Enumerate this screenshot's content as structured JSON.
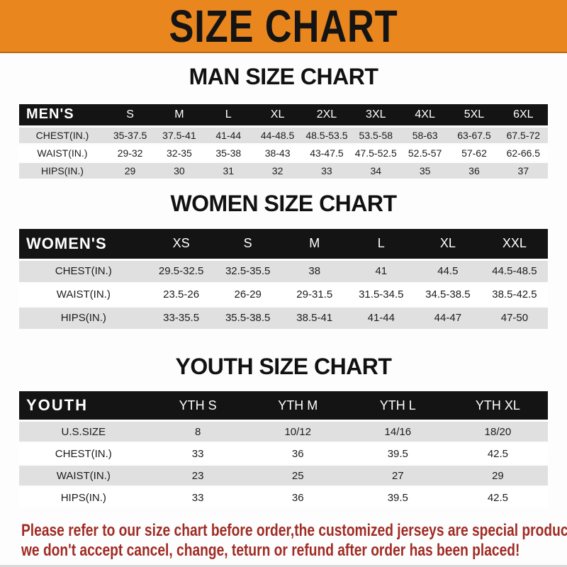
{
  "banner": {
    "title": "SIZE CHART"
  },
  "sections": [
    {
      "id": "men",
      "heading": "MAN SIZE CHART",
      "table": {
        "corner_label": "MEN'S",
        "columns": [
          "S",
          "M",
          "L",
          "XL",
          "2XL",
          "3XL",
          "4XL",
          "5XL",
          "6XL"
        ],
        "rows": [
          {
            "label": "CHEST(IN.)",
            "values": [
              "35-37.5",
              "37.5-41",
              "41-44",
              "44-48.5",
              "48.5-53.5",
              "53.5-58",
              "58-63",
              "63-67.5",
              "67.5-72"
            ]
          },
          {
            "label": "WAIST(IN.)",
            "values": [
              "29-32",
              "32-35",
              "35-38",
              "38-43",
              "43-47.5",
              "47.5-52.5",
              "52.5-57",
              "57-62",
              "62-66.5"
            ]
          },
          {
            "label": "HIPS(IN.)",
            "values": [
              "29",
              "30",
              "31",
              "32",
              "33",
              "34",
              "35",
              "36",
              "37"
            ]
          }
        ]
      }
    },
    {
      "id": "women",
      "heading": "WOMEN SIZE CHART",
      "table": {
        "corner_label": "WOMEN'S",
        "columns": [
          "XS",
          "S",
          "M",
          "L",
          "XL",
          "XXL"
        ],
        "rows": [
          {
            "label": "CHEST(IN.)",
            "values": [
              "29.5-32.5",
              "32.5-35.5",
              "38",
              "41",
              "44.5",
              "44.5-48.5"
            ]
          },
          {
            "label": "WAIST(IN.)",
            "values": [
              "23.5-26",
              "26-29",
              "29-31.5",
              "31.5-34.5",
              "34.5-38.5",
              "38.5-42.5"
            ]
          },
          {
            "label": "HIPS(IN.)",
            "values": [
              "33-35.5",
              "35.5-38.5",
              "38.5-41",
              "41-44",
              "44-47",
              "47-50"
            ]
          }
        ]
      }
    },
    {
      "id": "youth",
      "heading": "YOUTH SIZE CHART",
      "table": {
        "corner_label": "YOUTH",
        "columns": [
          "YTH S",
          "YTH M",
          "YTH L",
          "YTH XL"
        ],
        "rows": [
          {
            "label": "U.S.SIZE",
            "values": [
              "8",
              "10/12",
              "14/16",
              "18/20"
            ]
          },
          {
            "label": "CHEST(IN.)",
            "values": [
              "33",
              "36",
              "39.5",
              "42.5"
            ]
          },
          {
            "label": "WAIST(IN.)",
            "values": [
              "23",
              "25",
              "27",
              "29"
            ]
          },
          {
            "label": "HIPS(IN.)",
            "values": [
              "33",
              "36",
              "39.5",
              "42.5"
            ]
          }
        ]
      }
    }
  ],
  "footer": {
    "lines": [
      "Please refer to our size chart before order,the customized jerseys are special products,",
      "we don't accept cancel, change, teturn or refund after order has been placed!"
    ]
  },
  "colors": {
    "banner_orange": "#e9861e",
    "table_header_black": "#141414",
    "row_gray": "#e0e0e0",
    "row_white": "#ffffff",
    "footer_red": "#a02c25",
    "title_text": "#141414"
  }
}
